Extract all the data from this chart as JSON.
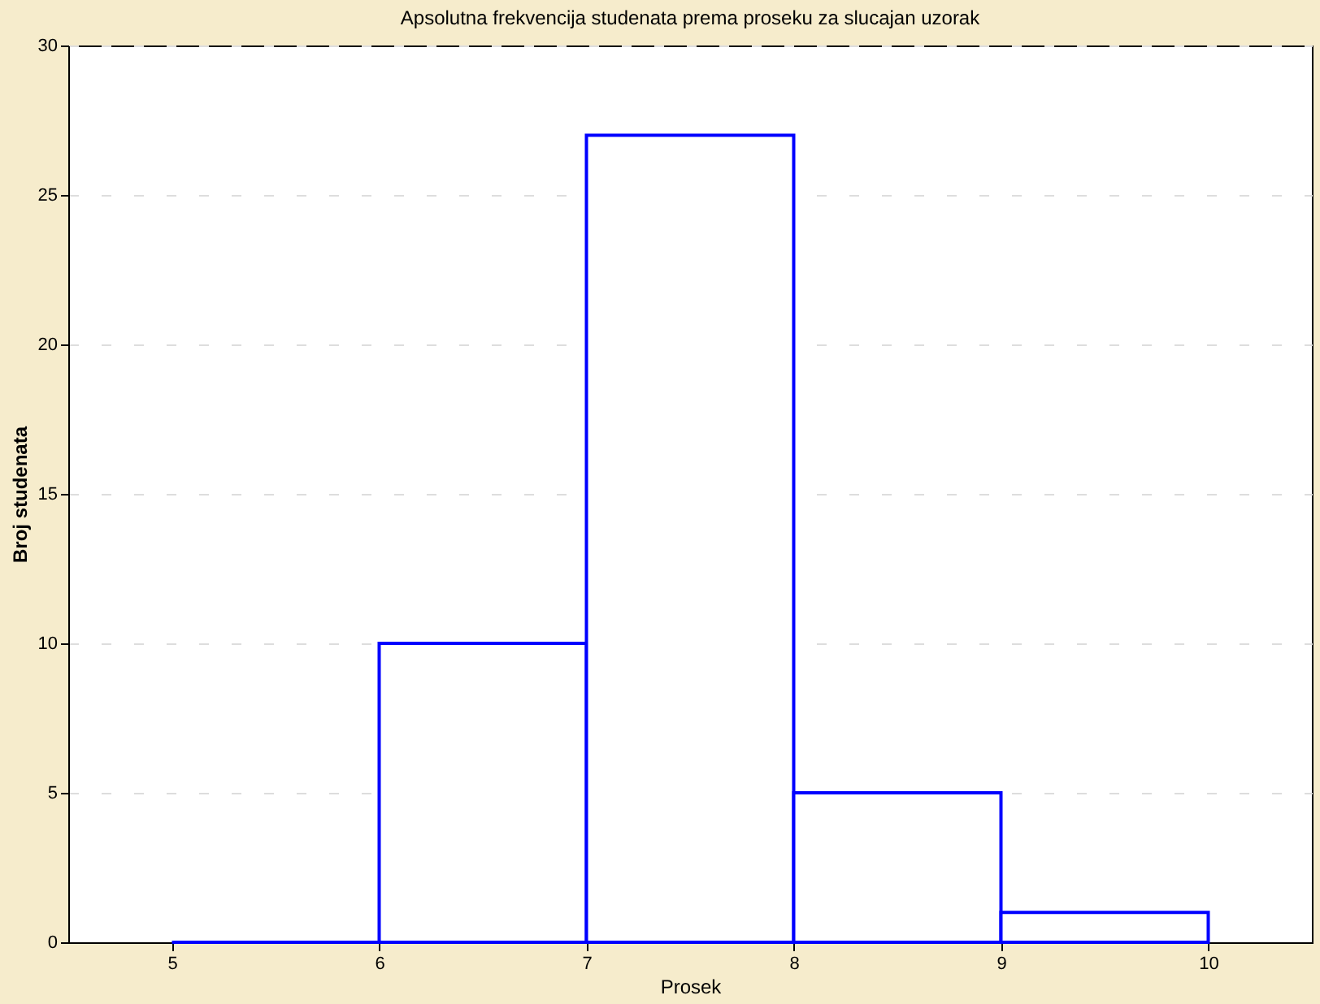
{
  "chart_data": {
    "type": "histogram",
    "title": "Apsolutna frekvencija studenata prema proseku za slucajan uzorak",
    "xlabel": "Prosek",
    "ylabel": "Broj studenata",
    "bins": [
      5,
      6,
      7,
      8,
      9,
      10
    ],
    "values": [
      0,
      10,
      27,
      5,
      1
    ],
    "color": "#0000ff",
    "xlim": [
      4.5,
      10.5
    ],
    "xticks": [
      5,
      6,
      7,
      8,
      9,
      10
    ],
    "ylim": [
      0,
      30
    ],
    "yticks": [
      0,
      5,
      10,
      15,
      20,
      25,
      30
    ],
    "grid": "y"
  }
}
